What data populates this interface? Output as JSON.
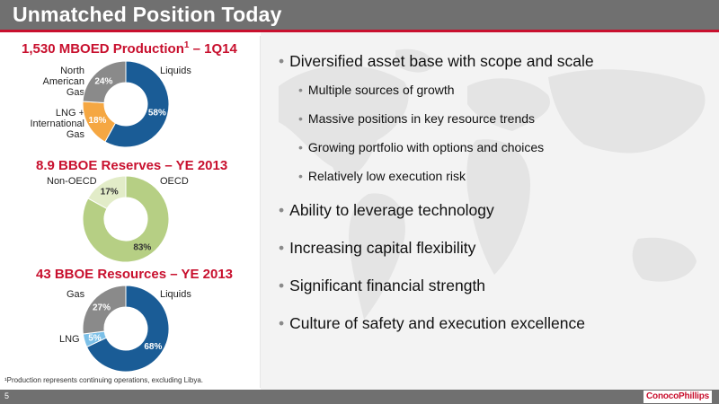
{
  "slide": {
    "title": "Unmatched Position Today",
    "page_number": "5",
    "footnote": "¹Production represents continuing operations, excluding Libya.",
    "logo_text": "ConocoPhillips"
  },
  "charts": {
    "production": {
      "title_main": "1,530 MBOED Production",
      "title_sup": "1",
      "title_suffix": " – 1Q14",
      "labels": {
        "north_american_gas": "North American Gas",
        "lng_international_gas": "LNG + International Gas",
        "liquids": "Liquids"
      }
    },
    "reserves": {
      "title": "8.9 BBOE Reserves – YE 2013",
      "labels": {
        "non_oecd": "Non-OECD",
        "oecd": "OECD"
      }
    },
    "resources": {
      "title": "43 BBOE Resources – YE 2013",
      "labels": {
        "gas": "Gas",
        "lng": "LNG",
        "liquids": "Liquids"
      }
    }
  },
  "chart_data": [
    {
      "type": "pie",
      "title": "1,530 MBOED Production¹ – 1Q14",
      "donut": true,
      "slices": [
        {
          "name": "Liquids",
          "value": 58,
          "label": "58%",
          "color": "#1a5c96"
        },
        {
          "name": "LNG + International Gas",
          "value": 18,
          "label": "18%",
          "color": "#f5a742"
        },
        {
          "name": "North American Gas",
          "value": 24,
          "label": "24%",
          "color": "#8a8a8a"
        }
      ]
    },
    {
      "type": "pie",
      "title": "8.9 BBOE Reserves – YE 2013",
      "donut": true,
      "slices": [
        {
          "name": "OECD",
          "value": 83,
          "label": "83%",
          "color": "#b6cf84"
        },
        {
          "name": "Non-OECD",
          "value": 17,
          "label": "17%",
          "color": "#e2ecc8"
        }
      ]
    },
    {
      "type": "pie",
      "title": "43 BBOE Resources – YE 2013",
      "donut": true,
      "slices": [
        {
          "name": "Liquids",
          "value": 68,
          "label": "68%",
          "color": "#1a5c96"
        },
        {
          "name": "LNG",
          "value": 5,
          "label": "5%",
          "color": "#7cc0e8"
        },
        {
          "name": "Gas",
          "value": 27,
          "label": "27%",
          "color": "#8a8a8a"
        }
      ]
    }
  ],
  "bullets": [
    {
      "text": "Diversified asset base with scope and scale",
      "level": 1
    },
    {
      "text": "Multiple sources of growth",
      "level": 2
    },
    {
      "text": "Massive positions in key resource trends",
      "level": 2
    },
    {
      "text": "Growing portfolio with options and choices",
      "level": 2
    },
    {
      "text": "Relatively low execution risk",
      "level": 2
    },
    {
      "text": "Ability to leverage technology",
      "level": 1
    },
    {
      "text": "Increasing capital flexibility",
      "level": 1
    },
    {
      "text": "Significant financial strength",
      "level": 1
    },
    {
      "text": "Culture of safety and execution excellence",
      "level": 1
    }
  ],
  "bullet_glyph": "•"
}
